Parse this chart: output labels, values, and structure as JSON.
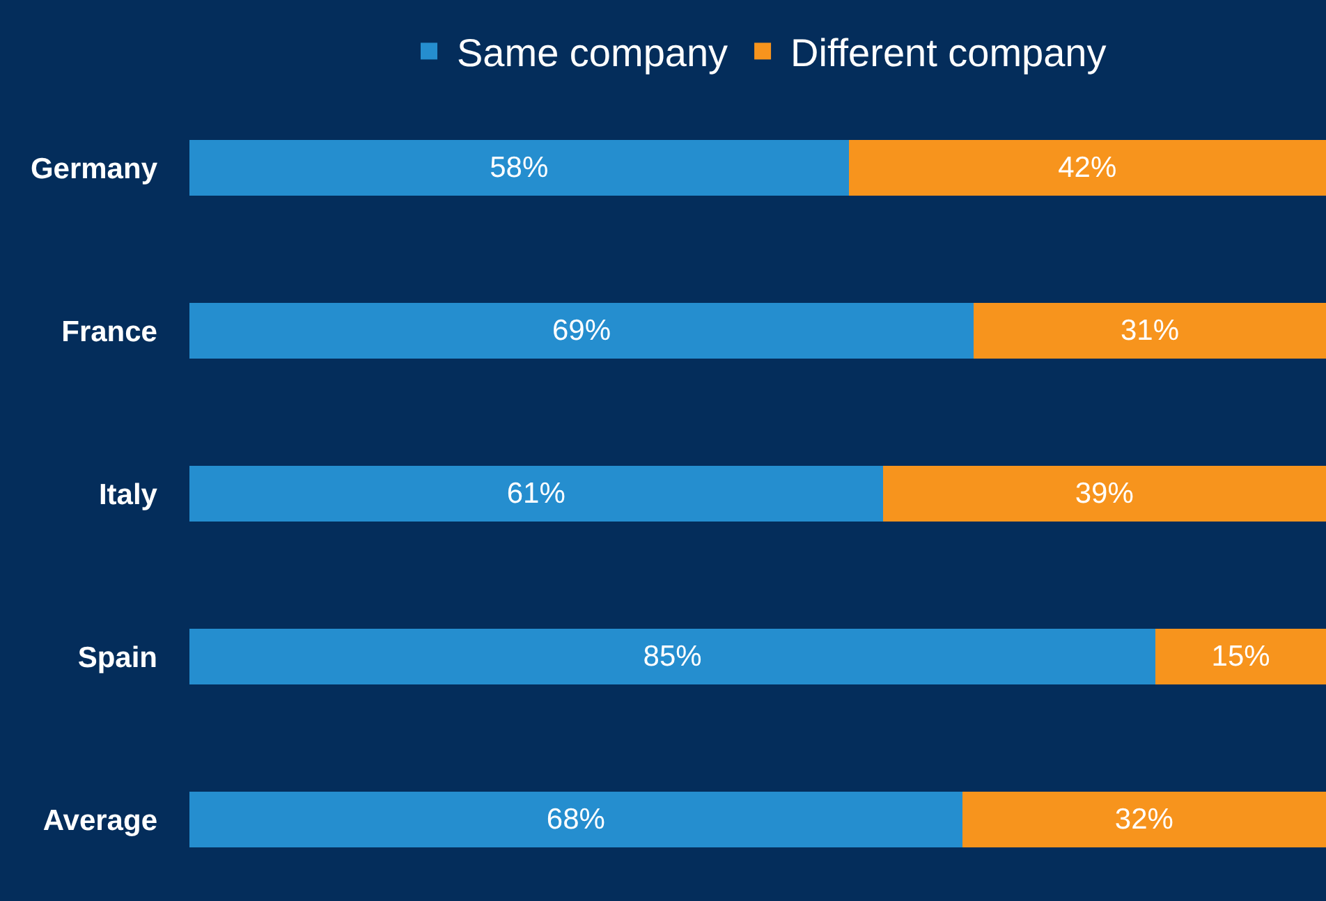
{
  "chart_data": {
    "type": "bar",
    "orientation": "horizontal",
    "stacked": true,
    "categories": [
      "Germany",
      "France",
      "Italy",
      "Spain",
      "Average"
    ],
    "series": [
      {
        "name": "Same company",
        "color": "#258ecf",
        "values": [
          58,
          69,
          61,
          85,
          68
        ],
        "value_labels": [
          "58%",
          "69%",
          "61%",
          "85%",
          "68%"
        ]
      },
      {
        "name": "Different company",
        "color": "#f7941d",
        "values": [
          42,
          31,
          39,
          15,
          32
        ],
        "value_labels": [
          "42%",
          "31%",
          "39%",
          "15%",
          "32%"
        ]
      }
    ],
    "xlim": [
      0,
      100
    ],
    "tick_labels": "y",
    "grid": false,
    "legend": "top"
  }
}
